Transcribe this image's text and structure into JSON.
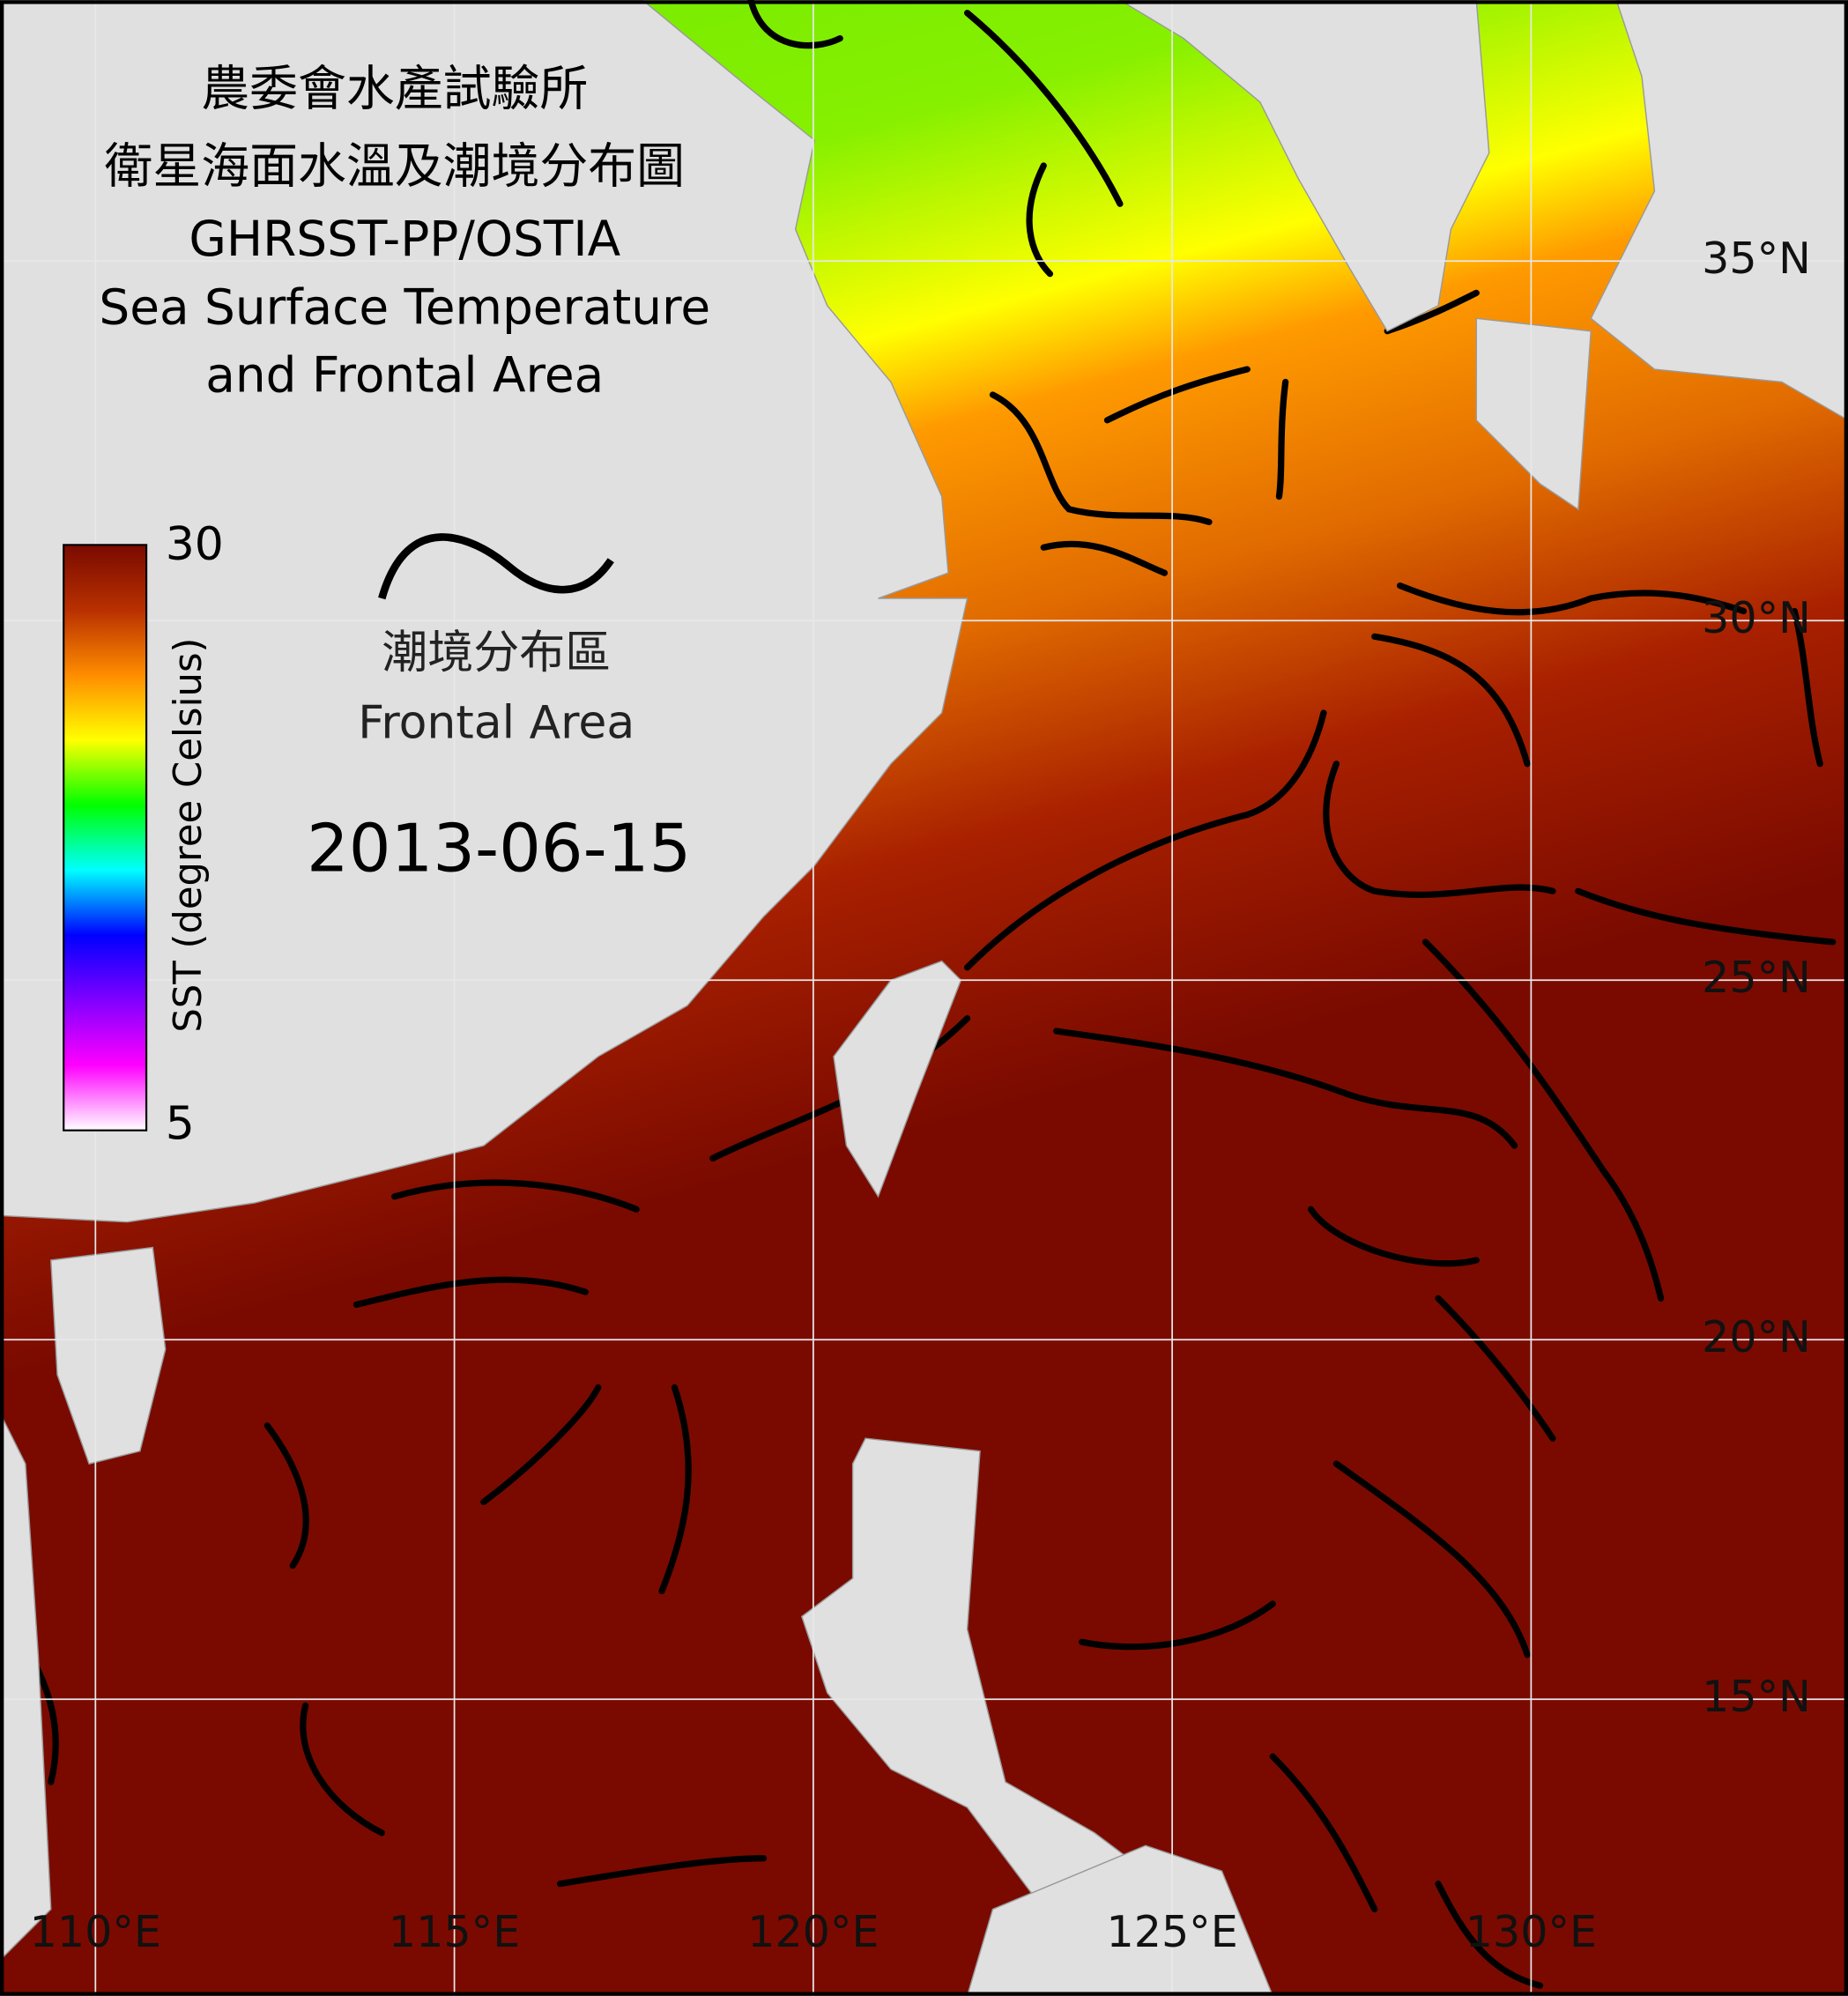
{
  "header": {
    "title_lines": [
      "農委會水產試驗所",
      "衛星海面水溫及潮境分布圖",
      "GHRSST-PP/OSTIA",
      "Sea Surface Temperature",
      "and Frontal Area"
    ]
  },
  "colorbar": {
    "label": "SST (degree Celsius)",
    "max": 30,
    "min": 5,
    "colors": [
      "#7a0a00",
      "#b83000",
      "#ff8c00",
      "#ffff00",
      "#00ff00",
      "#00ffff",
      "#0000ff",
      "#8000ff",
      "#ff00ff",
      "#ffffff"
    ]
  },
  "legend": {
    "label_zh": "潮境分布區",
    "label_en": "Frontal Area"
  },
  "date": "2013-06-15",
  "grid": {
    "latitudes": [
      {
        "value": 35,
        "label": "35°N"
      },
      {
        "value": 30,
        "label": "30°N"
      },
      {
        "value": 25,
        "label": "25°N"
      },
      {
        "value": 20,
        "label": "20°N"
      },
      {
        "value": 15,
        "label": "15°N"
      }
    ],
    "longitudes": [
      {
        "value": 110,
        "label": "110°E"
      },
      {
        "value": 115,
        "label": "115°E"
      },
      {
        "value": 120,
        "label": "120°E"
      },
      {
        "value": 125,
        "label": "125°E"
      },
      {
        "value": 130,
        "label": "130°E"
      }
    ]
  }
}
